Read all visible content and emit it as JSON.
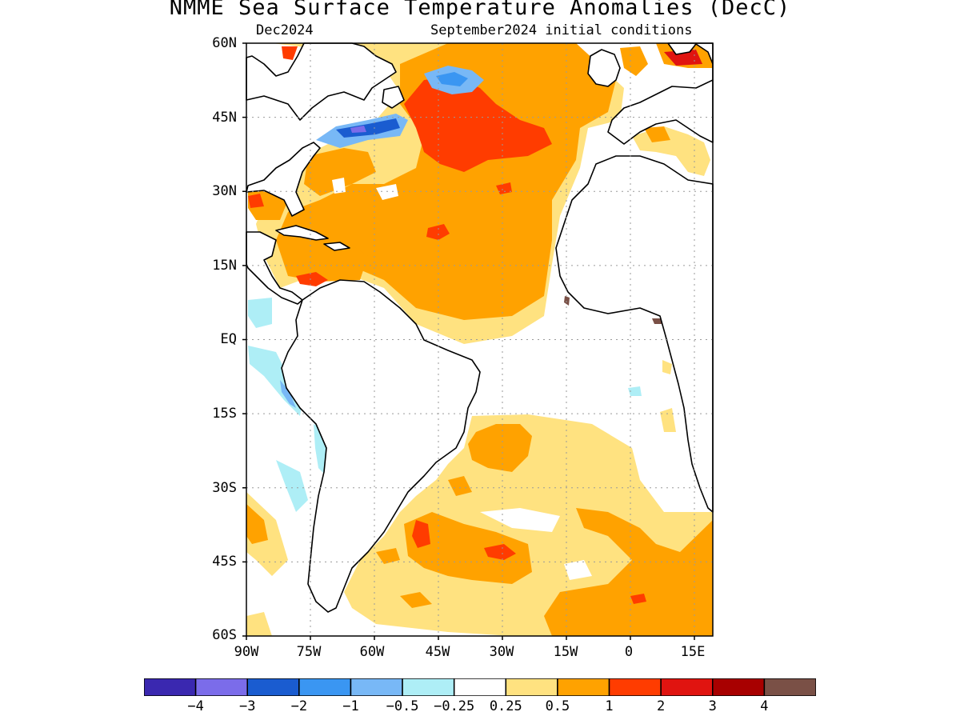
{
  "title": "NMME Sea Surface Temperature Anomalies (DecC)",
  "target_month": "Dec2024",
  "initial_conditions": "September2024 initial conditions",
  "latitude_labels": [
    "60N",
    "45N",
    "30N",
    "15N",
    "EQ",
    "15S",
    "30S",
    "45S",
    "60S"
  ],
  "longitude_labels": [
    "90W",
    "75W",
    "60W",
    "45W",
    "30W",
    "15W",
    "0",
    "15E"
  ],
  "colorbar": {
    "colors": [
      "#3a28b0",
      "#7b6cea",
      "#1a5cd0",
      "#3a96f2",
      "#78b8f6",
      "#aeeef6",
      "#ffffff",
      "#ffe280",
      "#ffa200",
      "#ff3c00",
      "#e01410",
      "#a80000",
      "#7a5046"
    ],
    "labels": [
      "−4",
      "−3",
      "−2",
      "−1",
      "−0.5",
      "−0.25",
      "0.25",
      "0.5",
      "1",
      "2",
      "3",
      "4"
    ]
  },
  "regions": [
    {
      "name": "north-atlantic-warm-anomaly",
      "level": "0.5 to 1"
    },
    {
      "name": "gulf-of-st-lawrence-cold-anomaly",
      "level": "-2 to -1"
    },
    {
      "name": "south-atlantic-warm-anomaly",
      "level": "0.25 to 1"
    }
  ]
}
